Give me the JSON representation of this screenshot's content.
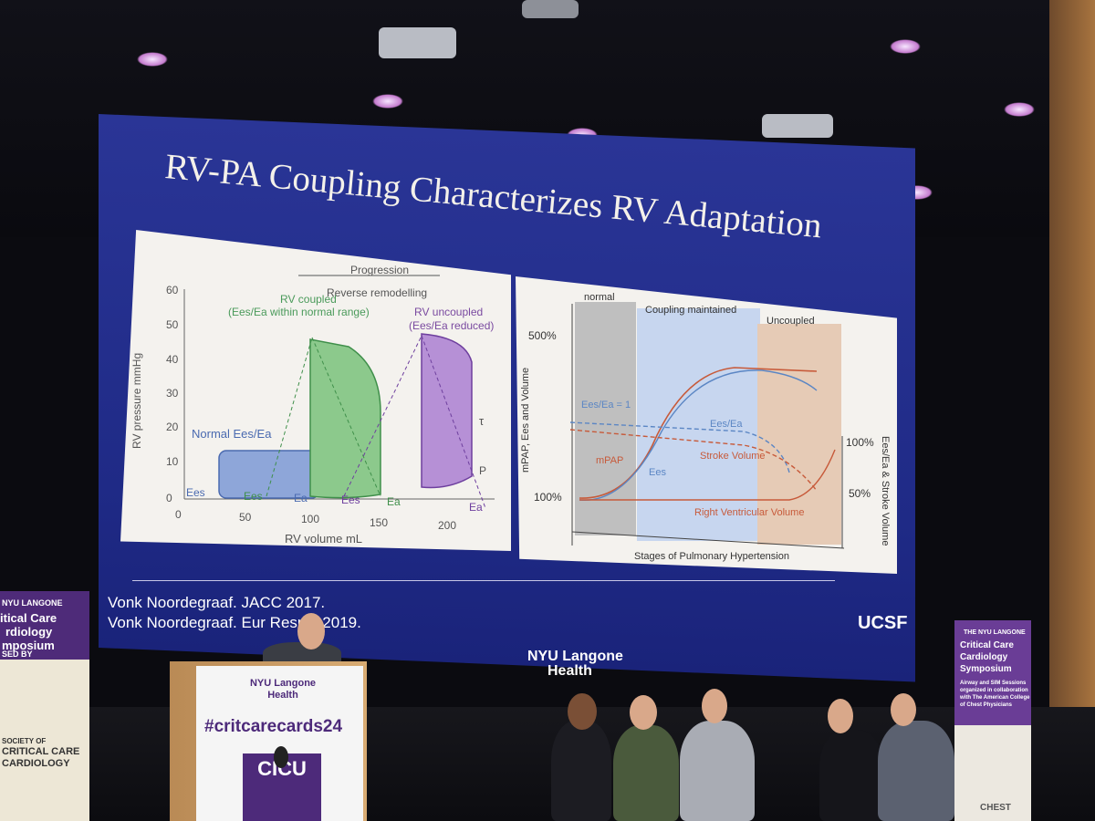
{
  "slide": {
    "title": "RV-PA Coupling Characterizes RV Adaptation",
    "references": [
      "Vonk Noordegraaf. JACC 2017.",
      "Vonk Noordegraaf. Eur Resp J 2019."
    ],
    "logo": "UCSF"
  },
  "left_chart": {
    "progression": "Progression",
    "reverse": "Reverse remodelling",
    "coupled": "RV coupled",
    "coupled_sub": "(Ees/Ea within normal range)",
    "uncoupled": "RV uncoupled",
    "uncoupled_sub": "(Ees/Ea reduced)",
    "normal_label": "Normal Ees/Ea",
    "ylabel": "RV pressure mmHg",
    "xlabel": "RV volume mL",
    "y_ticks": [
      "60",
      "50",
      "40",
      "30",
      "20",
      "10",
      "0"
    ],
    "x_ticks": [
      "0",
      "50",
      "100",
      "150",
      "200"
    ],
    "ees": "Ees",
    "ea": "Ea",
    "tau": "τ",
    "p": "P"
  },
  "right_chart": {
    "phase_normal": "normal",
    "phase_maintained": "Coupling maintained",
    "phase_uncoupled": "Uncoupled",
    "ylabel_left": "mPAP, Ees and Volume",
    "ylabel_right": "Ees/Ea & Stroke Volume",
    "xlabel": "Stages of Pulmonary Hypertension",
    "y500": "500%",
    "y100": "100%",
    "r100": "100%",
    "r50": "50%",
    "ratio1": "Ees/Ea = 1",
    "ratio": "Ees/Ea",
    "mpap": "mPAP",
    "ees": "Ees",
    "sv": "Stroke Volume",
    "rvv": "Right Ventricular Volume"
  },
  "venue": {
    "nyu_stage": [
      "NYU Langone",
      "Health"
    ],
    "podium_logo": [
      "NYU Langone",
      "Health"
    ],
    "hashtag": "#critcarecards24",
    "podium_sign": "CICU",
    "banner_left": [
      "NYU LANGONE",
      "itical Care",
      "rdiology",
      "mposium",
      "SED BY",
      "SOCIETY OF",
      "CRITICAL CARE",
      "CARDIOLOGY"
    ],
    "banner_right": [
      "THE NYU LANGONE",
      "Critical Care",
      "Cardiology",
      "Symposium",
      "Airway and SIM Sessions",
      "organized in collaboration",
      "with The American College",
      "of Chest Physicians",
      "CHEST"
    ]
  }
}
